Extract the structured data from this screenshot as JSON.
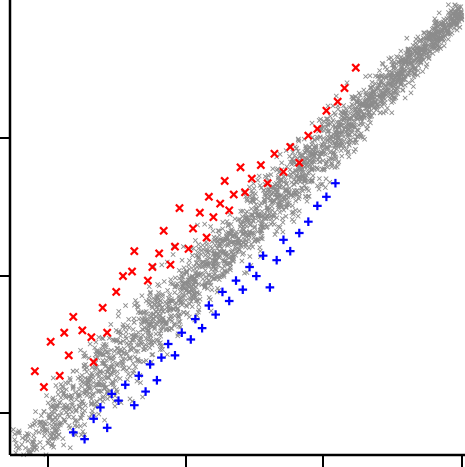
{
  "chart_data": {
    "type": "scatter",
    "title": "",
    "xlabel": "",
    "ylabel": "",
    "x_tick_labels": [],
    "y_tick_labels": [],
    "xlim": [
      0,
      100
    ],
    "ylim": [
      0,
      100
    ],
    "grid": false,
    "legend": "none",
    "series": [
      {
        "marker": "x",
        "color": "#8c8c8c",
        "role": "background",
        "values": []
      },
      {
        "marker": "x",
        "color": "#ff0000",
        "values": [
          [
            5.5,
            18.5
          ],
          [
            7.5,
            15.0
          ],
          [
            9.0,
            25.0
          ],
          [
            11.0,
            17.5
          ],
          [
            12.0,
            27.0
          ],
          [
            13.0,
            22.0
          ],
          [
            14.0,
            30.5
          ],
          [
            16.0,
            27.5
          ],
          [
            18.0,
            26.0
          ],
          [
            18.5,
            20.5
          ],
          [
            20.5,
            32.5
          ],
          [
            21.5,
            27.0
          ],
          [
            23.5,
            36.0
          ],
          [
            25.0,
            39.5
          ],
          [
            27.0,
            40.5
          ],
          [
            27.5,
            45.0
          ],
          [
            30.5,
            38.5
          ],
          [
            31.5,
            41.5
          ],
          [
            33.0,
            44.5
          ],
          [
            34.0,
            49.5
          ],
          [
            35.5,
            42.0
          ],
          [
            36.5,
            46.0
          ],
          [
            37.5,
            54.5
          ],
          [
            39.5,
            45.5
          ],
          [
            40.5,
            50.0
          ],
          [
            42.0,
            53.5
          ],
          [
            43.5,
            48.0
          ],
          [
            44.0,
            57.0
          ],
          [
            45.0,
            52.5
          ],
          [
            46.5,
            55.5
          ],
          [
            47.5,
            60.5
          ],
          [
            48.5,
            54.0
          ],
          [
            49.5,
            57.5
          ],
          [
            51.0,
            63.5
          ],
          [
            52.0,
            58.0
          ],
          [
            53.5,
            61.0
          ],
          [
            55.5,
            64.0
          ],
          [
            57.0,
            60.0
          ],
          [
            58.5,
            66.5
          ],
          [
            60.5,
            62.5
          ],
          [
            62.0,
            68.0
          ],
          [
            64.0,
            64.5
          ],
          [
            66.0,
            70.5
          ],
          [
            68.0,
            72.0
          ],
          [
            70.0,
            76.0
          ],
          [
            72.5,
            78.0
          ],
          [
            74.0,
            81.0
          ],
          [
            76.5,
            85.5
          ]
        ]
      },
      {
        "marker": "+",
        "color": "#0000ff",
        "values": [
          [
            14.0,
            5.0
          ],
          [
            16.5,
            3.5
          ],
          [
            18.5,
            8.0
          ],
          [
            20.0,
            10.5
          ],
          [
            21.5,
            6.0
          ],
          [
            22.5,
            13.5
          ],
          [
            24.0,
            12.0
          ],
          [
            25.5,
            15.5
          ],
          [
            27.5,
            11.0
          ],
          [
            28.5,
            17.5
          ],
          [
            30.0,
            14.0
          ],
          [
            31.0,
            20.0
          ],
          [
            32.5,
            16.5
          ],
          [
            33.5,
            21.5
          ],
          [
            35.0,
            24.5
          ],
          [
            36.5,
            22.0
          ],
          [
            38.0,
            27.0
          ],
          [
            40.0,
            25.5
          ],
          [
            41.0,
            30.0
          ],
          [
            42.5,
            28.0
          ],
          [
            44.0,
            33.0
          ],
          [
            45.5,
            31.0
          ],
          [
            47.0,
            36.0
          ],
          [
            48.5,
            34.0
          ],
          [
            50.0,
            38.5
          ],
          [
            51.5,
            36.5
          ],
          [
            53.0,
            41.5
          ],
          [
            54.5,
            39.5
          ],
          [
            56.0,
            44.0
          ],
          [
            57.5,
            37.0
          ],
          [
            59.0,
            43.0
          ],
          [
            60.5,
            47.5
          ],
          [
            62.0,
            45.0
          ],
          [
            64.0,
            49.0
          ],
          [
            66.0,
            51.5
          ],
          [
            68.0,
            55.0
          ],
          [
            70.0,
            57.0
          ],
          [
            72.0,
            60.0
          ]
        ]
      }
    ]
  }
}
